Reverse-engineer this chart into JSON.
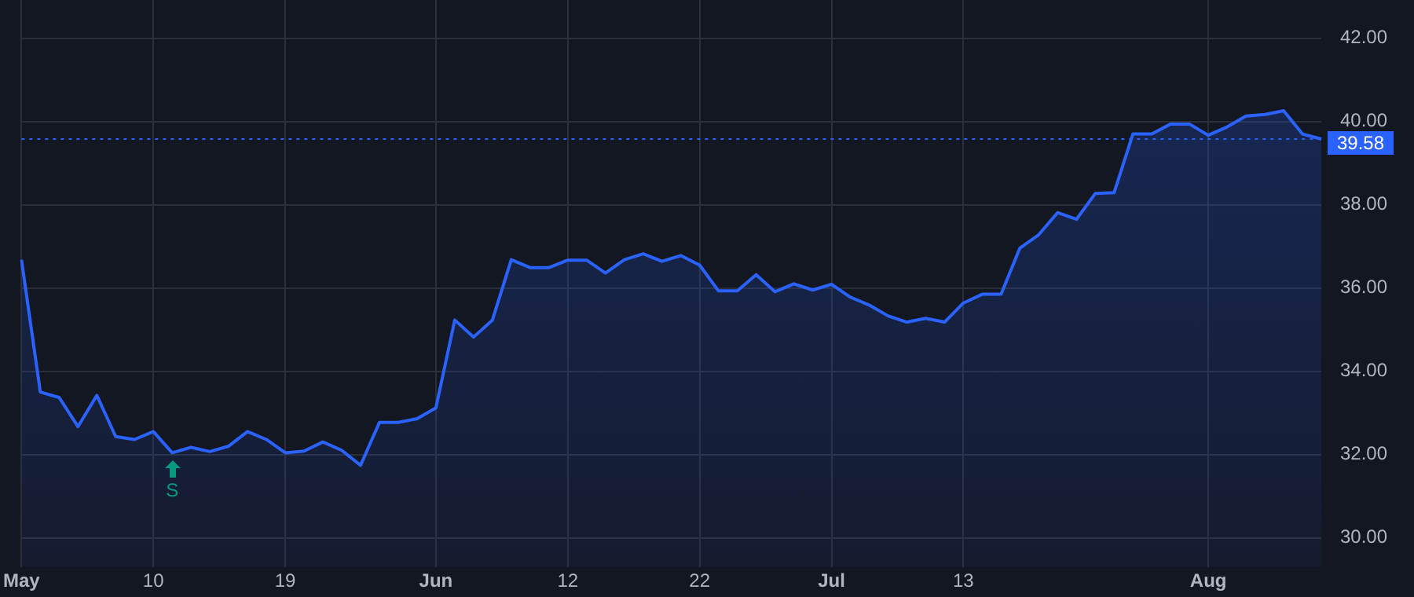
{
  "chart_data": {
    "type": "area",
    "categories": [
      "May",
      null,
      null,
      null,
      null,
      null,
      null,
      "10",
      null,
      null,
      null,
      null,
      null,
      null,
      "19",
      null,
      null,
      null,
      null,
      null,
      null,
      null,
      "Jun",
      null,
      null,
      null,
      null,
      null,
      null,
      "12",
      null,
      null,
      null,
      null,
      null,
      null,
      "22",
      null,
      null,
      null,
      null,
      null,
      null,
      "Jul",
      null,
      null,
      null,
      null,
      null,
      null,
      "13",
      null,
      null,
      null,
      null,
      null,
      null,
      null,
      null,
      null,
      null,
      null,
      null,
      "Aug",
      null,
      null,
      null,
      null,
      null,
      null
    ],
    "series": [
      {
        "color": "#2962ff",
        "values": [
          36.68,
          33.5,
          33.37,
          32.67,
          33.42,
          32.43,
          32.36,
          32.55,
          32.04,
          32.17,
          32.07,
          32.2,
          32.55,
          32.36,
          32.04,
          32.08,
          32.3,
          32.1,
          31.74,
          32.77,
          32.77,
          32.86,
          33.12,
          35.23,
          34.82,
          35.23,
          36.68,
          36.49,
          36.49,
          36.67,
          36.67,
          36.36,
          36.68,
          36.82,
          36.64,
          36.78,
          36.55,
          35.93,
          35.93,
          36.32,
          35.91,
          36.1,
          35.95,
          36.09,
          35.78,
          35.59,
          35.33,
          35.18,
          35.27,
          35.18,
          35.64,
          35.85,
          35.85,
          36.96,
          37.28,
          37.81,
          37.65,
          38.27,
          38.29,
          39.7,
          39.7,
          39.94,
          39.94,
          39.67,
          39.87,
          40.13,
          40.17,
          40.26,
          39.7,
          39.58
        ]
      }
    ],
    "ylim": [
      29.3,
      42.95
    ],
    "yticks": [
      {
        "value": 30,
        "label": "30.00"
      },
      {
        "value": 32,
        "label": "32.00"
      },
      {
        "value": 34,
        "label": "34.00"
      },
      {
        "value": 36,
        "label": "36.00"
      },
      {
        "value": 38,
        "label": "38.00"
      },
      {
        "value": 40,
        "label": "40.00"
      },
      {
        "value": 42,
        "label": "42.00"
      }
    ],
    "grid": true,
    "legend": false,
    "marker": "none",
    "line_style": "solid",
    "ref_lines": [
      {
        "axis": "y",
        "value": 39.58,
        "label": "39.58",
        "color": "#2962ff",
        "line_style": "dotted"
      }
    ],
    "annotations": [
      {
        "text": "S",
        "y": 32.04
      }
    ]
  }
}
